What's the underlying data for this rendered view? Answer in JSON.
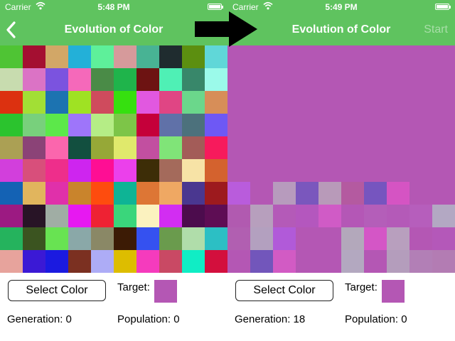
{
  "colors": {
    "nav_green": "#5fc35f",
    "target_color": "#b457b4",
    "arrow": "#000000"
  },
  "left_screen": {
    "statusbar": {
      "carrier": "Carrier",
      "time": "5:48 PM"
    },
    "navbar": {
      "title": "Evolution of Color",
      "back_icon": "chevron-left-icon"
    },
    "controls": {
      "select_color_label": "Select Color",
      "target_label": "Target:",
      "generation_text": "Generation: 0",
      "population_text": "Population: 0"
    },
    "grid_rows": [
      [
        "#4fc434",
        "#a40f31",
        "#d2a767",
        "#23b0d8",
        "#5ef09a",
        "#d69a9b",
        "#48b394",
        "#1f2c2f",
        "#5c8f10",
        "#60d7d8"
      ],
      [
        "#c8dcaf",
        "#db73c5",
        "#7b53df",
        "#f569ba",
        "#4a8b47",
        "#1fb44b",
        "#6d1312",
        "#4ff0b5",
        "#38876a",
        "#9bfaea"
      ],
      [
        "#dc3110",
        "#a2df35",
        "#1c73b1",
        "#9fe223",
        "#cf4b5d",
        "#36e00f",
        "#e158e0",
        "#e04584",
        "#6bd78b",
        "#d78e58"
      ],
      [
        "#2bc32e",
        "#78d07c",
        "#5ce84a",
        "#9e75fa",
        "#b5ed86",
        "#7dc548",
        "#c5003a",
        "#6071a8",
        "#4c717c",
        "#6e58f5"
      ],
      [
        "#aba054",
        "#8b4377",
        "#fb66ad",
        "#124f3f",
        "#96a837",
        "#e0e96c",
        "#c24fa0",
        "#80e478",
        "#a35c58",
        "#f71a5c"
      ],
      [
        "#d23fdc",
        "#d84f7b",
        "#ee2e8b",
        "#ce25ef",
        "#fe0e94",
        "#eb40eb",
        "#3d2d07",
        "#a46a5b",
        "#f7e3a6",
        "#d4622e"
      ],
      [
        "#1462b4",
        "#e1b55d",
        "#e030aa",
        "#c9842c",
        "#fe4c0e",
        "#0eb495",
        "#dd7635",
        "#efa863",
        "#4a3790",
        "#9d1a1e"
      ],
      [
        "#9c1a82",
        "#281426",
        "#a0ada4",
        "#e718f1",
        "#ee2233",
        "#3ad67b",
        "#fbf2bf",
        "#d22df2",
        "#4c0c4d",
        "#5e0d54"
      ],
      [
        "#25b35d",
        "#3b5420",
        "#68e352",
        "#8aa8a8",
        "#8a8866",
        "#3c1b05",
        "#3551f0",
        "#6a9b4d",
        "#b0ddaa",
        "#2cbfc4"
      ],
      [
        "#e7a39c",
        "#3b19d5",
        "#1b1ae0",
        "#7b3021",
        "#adacf6",
        "#ddbd00",
        "#f53bbd",
        "#c94964",
        "#10edc5",
        "#d30f3d"
      ]
    ]
  },
  "right_screen": {
    "statusbar": {
      "carrier": "Carrier",
      "time": "5:49 PM"
    },
    "navbar": {
      "title": "Evolution of Color",
      "start_label": "Start"
    },
    "controls": {
      "select_color_label": "Select Color",
      "target_label": "Target:",
      "generation_text": "Generation: 18",
      "population_text": "Population: 0"
    },
    "top_fill": "#b457b4",
    "grid_rows": [
      [
        "#b95cdc",
        "#b457b4",
        "#b79bbd",
        "#7a57bd",
        "#b89ab9",
        "#b45aa0",
        "#7655bf",
        "#d554c3",
        "#b457b4",
        "#b457b4"
      ],
      [
        "#b15ab0",
        "#b79fbd",
        "#b45ab8",
        "#b457be",
        "#d05bc6",
        "#b457b6",
        "#b45eb9",
        "#b45ab8",
        "#b65ebc",
        "#b3a8c3"
      ],
      [
        "#b15fb1",
        "#b3a0bf",
        "#b15ad9",
        "#b457b4",
        "#b457b4",
        "#b3a8bb",
        "#d456c6",
        "#b89fbe",
        "#b457b4",
        "#b458b9"
      ],
      [
        "#b457b4",
        "#7256bb",
        "#d25bc4",
        "#b457b4",
        "#b457b4",
        "#b3a8c0",
        "#b457b4",
        "#b49dbc",
        "#b27fb6",
        "#b37cb3"
      ]
    ]
  }
}
